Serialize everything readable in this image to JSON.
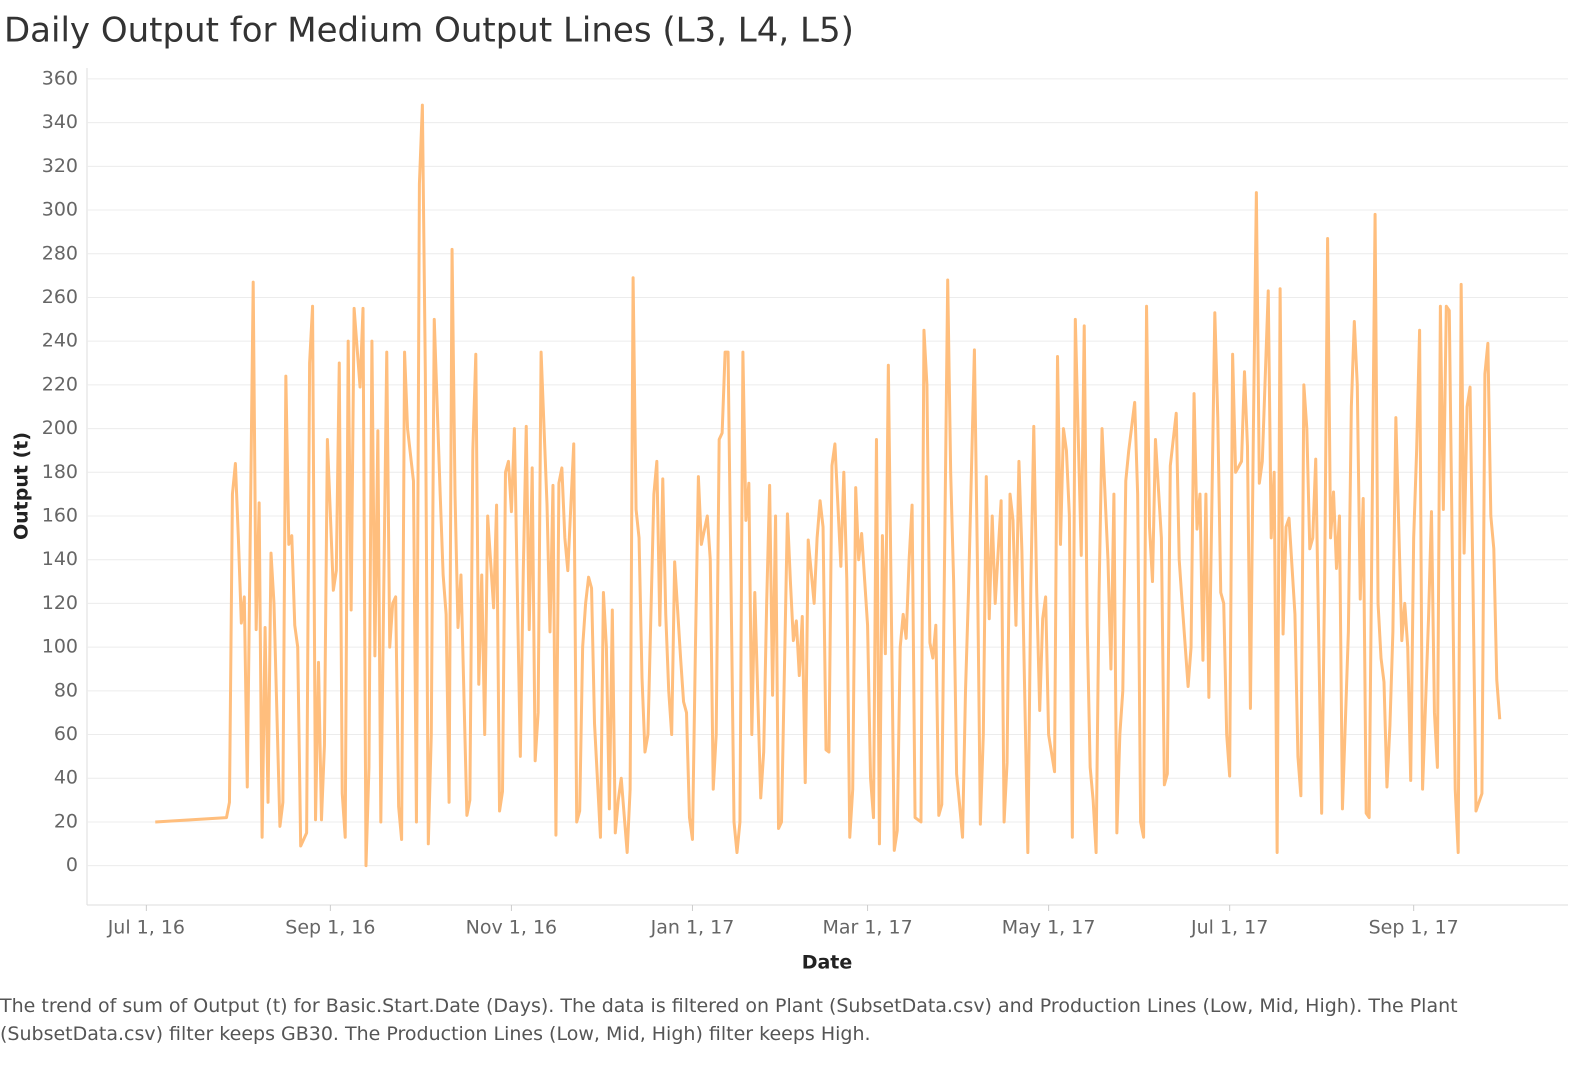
{
  "chart_data": {
    "type": "line",
    "title": "Daily Output for Medium Output Lines (L3, L4, L5)",
    "x_label": "Date",
    "y_label": "Output (t)",
    "caption": "The trend of sum of Output (t) for Basic.Start.Date (Days). The data is filtered on Plant (SubsetData.csv) and Production Lines (Low, Mid, High). The Plant (SubsetData.csv) filter keeps GB30. The Production Lines (Low, Mid, High) filter keeps High.",
    "color": "#ffbe7d",
    "grid": true,
    "xlim": [
      "2016-06-11",
      "2017-10-23"
    ],
    "xticks": [
      {
        "value": "2016-07-01",
        "label": "Jul 1, 16"
      },
      {
        "value": "2016-09-01",
        "label": "Sep 1, 16"
      },
      {
        "value": "2016-11-01",
        "label": "Nov 1, 16"
      },
      {
        "value": "2017-01-01",
        "label": "Jan 1, 17"
      },
      {
        "value": "2017-03-01",
        "label": "Mar 1, 17"
      },
      {
        "value": "2017-05-01",
        "label": "May 1, 17"
      },
      {
        "value": "2017-07-01",
        "label": "Jul 1, 17"
      },
      {
        "value": "2017-09-01",
        "label": "Sep 1, 17"
      }
    ],
    "ylim": [
      -18,
      365
    ],
    "yticks": [
      0,
      20,
      40,
      60,
      80,
      100,
      120,
      140,
      160,
      180,
      200,
      220,
      240,
      260,
      280,
      300,
      320,
      340,
      360
    ],
    "x": [
      "2016-07-04",
      "2016-07-28",
      "2016-07-29",
      "2016-07-30",
      "2016-07-31",
      "2016-08-01",
      "2016-08-02",
      "2016-08-03",
      "2016-08-04",
      "2016-08-06",
      "2016-08-07",
      "2016-08-08",
      "2016-08-09",
      "2016-08-10",
      "2016-08-11",
      "2016-08-12",
      "2016-08-13",
      "2016-08-15",
      "2016-08-16",
      "2016-08-17",
      "2016-08-18",
      "2016-08-19",
      "2016-08-20",
      "2016-08-21",
      "2016-08-22",
      "2016-08-24",
      "2016-08-25",
      "2016-08-26",
      "2016-08-27",
      "2016-08-28",
      "2016-08-29",
      "2016-08-30",
      "2016-08-31",
      "2016-09-02",
      "2016-09-03",
      "2016-09-04",
      "2016-09-05",
      "2016-09-06",
      "2016-09-07",
      "2016-09-08",
      "2016-09-09",
      "2016-09-11",
      "2016-09-12",
      "2016-09-13",
      "2016-09-14",
      "2016-09-15",
      "2016-09-16",
      "2016-09-17",
      "2016-09-18",
      "2016-09-20",
      "2016-09-21",
      "2016-09-22",
      "2016-09-23",
      "2016-09-24",
      "2016-09-25",
      "2016-09-26",
      "2016-09-27",
      "2016-09-29",
      "2016-09-30",
      "2016-10-01",
      "2016-10-02",
      "2016-10-03",
      "2016-10-04",
      "2016-10-05",
      "2016-10-06",
      "2016-10-08",
      "2016-10-09",
      "2016-10-10",
      "2016-10-11",
      "2016-10-12",
      "2016-10-13",
      "2016-10-14",
      "2016-10-15",
      "2016-10-17",
      "2016-10-18",
      "2016-10-19",
      "2016-10-20",
      "2016-10-21",
      "2016-10-22",
      "2016-10-23",
      "2016-10-24",
      "2016-10-26",
      "2016-10-27",
      "2016-10-28",
      "2016-10-29",
      "2016-10-30",
      "2016-10-31",
      "2016-11-01",
      "2016-11-02",
      "2016-11-04",
      "2016-11-05",
      "2016-11-06",
      "2016-11-07",
      "2016-11-08",
      "2016-11-09",
      "2016-11-10",
      "2016-11-11",
      "2016-11-13",
      "2016-11-14",
      "2016-11-15",
      "2016-11-16",
      "2016-11-17",
      "2016-11-18",
      "2016-11-19",
      "2016-11-20",
      "2016-11-22",
      "2016-11-23",
      "2016-11-24",
      "2016-11-25",
      "2016-11-26",
      "2016-11-27",
      "2016-11-28",
      "2016-11-29",
      "2016-12-01",
      "2016-12-02",
      "2016-12-03",
      "2016-12-04",
      "2016-12-05",
      "2016-12-06",
      "2016-12-07",
      "2016-12-08",
      "2016-12-10",
      "2016-12-11",
      "2016-12-12",
      "2016-12-13",
      "2016-12-14",
      "2016-12-15",
      "2016-12-16",
      "2016-12-17",
      "2016-12-19",
      "2016-12-20",
      "2016-12-21",
      "2016-12-22",
      "2016-12-23",
      "2016-12-24",
      "2016-12-25",
      "2016-12-26",
      "2016-12-28",
      "2016-12-29",
      "2016-12-30",
      "2016-12-31",
      "2017-01-01",
      "2017-01-02",
      "2017-01-03",
      "2017-01-04",
      "2017-01-06",
      "2017-01-07",
      "2017-01-08",
      "2017-01-09",
      "2017-01-10",
      "2017-01-11",
      "2017-01-12",
      "2017-01-13",
      "2017-01-15",
      "2017-01-16",
      "2017-01-17",
      "2017-01-18",
      "2017-01-19",
      "2017-01-20",
      "2017-01-21",
      "2017-01-22",
      "2017-01-24",
      "2017-01-25",
      "2017-01-26",
      "2017-01-27",
      "2017-01-28",
      "2017-01-29",
      "2017-01-30",
      "2017-01-31",
      "2017-02-02",
      "2017-02-03",
      "2017-02-04",
      "2017-02-05",
      "2017-02-06",
      "2017-02-07",
      "2017-02-08",
      "2017-02-09",
      "2017-02-11",
      "2017-02-12",
      "2017-02-13",
      "2017-02-14",
      "2017-02-15",
      "2017-02-16",
      "2017-02-17",
      "2017-02-18",
      "2017-02-20",
      "2017-02-21",
      "2017-02-22",
      "2017-02-23",
      "2017-02-24",
      "2017-02-25",
      "2017-02-26",
      "2017-02-27",
      "2017-03-01",
      "2017-03-02",
      "2017-03-03",
      "2017-03-04",
      "2017-03-05",
      "2017-03-06",
      "2017-03-07",
      "2017-03-08",
      "2017-03-10",
      "2017-03-11",
      "2017-03-12",
      "2017-03-13",
      "2017-03-14",
      "2017-03-15",
      "2017-03-16",
      "2017-03-17",
      "2017-03-19",
      "2017-03-20",
      "2017-03-21",
      "2017-03-22",
      "2017-03-23",
      "2017-03-24",
      "2017-03-25",
      "2017-03-26",
      "2017-03-28",
      "2017-03-29",
      "2017-03-30",
      "2017-03-31",
      "2017-04-01",
      "2017-04-02",
      "2017-04-03",
      "2017-04-04",
      "2017-04-06",
      "2017-04-07",
      "2017-04-08",
      "2017-04-09",
      "2017-04-10",
      "2017-04-11",
      "2017-04-12",
      "2017-04-13",
      "2017-04-15",
      "2017-04-16",
      "2017-04-17",
      "2017-04-18",
      "2017-04-19",
      "2017-04-20",
      "2017-04-21",
      "2017-04-22",
      "2017-04-24",
      "2017-04-25",
      "2017-04-26",
      "2017-04-27",
      "2017-04-28",
      "2017-04-29",
      "2017-04-30",
      "2017-05-01",
      "2017-05-03",
      "2017-05-04",
      "2017-05-05",
      "2017-05-06",
      "2017-05-07",
      "2017-05-08",
      "2017-05-09",
      "2017-05-10",
      "2017-05-12",
      "2017-05-13",
      "2017-05-14",
      "2017-05-15",
      "2017-05-16",
      "2017-05-17",
      "2017-05-18",
      "2017-05-19",
      "2017-05-21",
      "2017-05-22",
      "2017-05-23",
      "2017-05-24",
      "2017-05-25",
      "2017-05-26",
      "2017-05-27",
      "2017-05-28",
      "2017-05-30",
      "2017-05-31",
      "2017-06-01",
      "2017-06-02",
      "2017-06-03",
      "2017-06-04",
      "2017-06-05",
      "2017-06-06",
      "2017-06-08",
      "2017-06-09",
      "2017-06-10",
      "2017-06-11",
      "2017-06-12",
      "2017-06-13",
      "2017-06-14",
      "2017-06-15",
      "2017-06-17",
      "2017-06-18",
      "2017-06-19",
      "2017-06-20",
      "2017-06-21",
      "2017-06-22",
      "2017-06-23",
      "2017-06-24",
      "2017-06-26",
      "2017-06-27",
      "2017-06-28",
      "2017-06-29",
      "2017-06-30",
      "2017-07-01",
      "2017-07-02",
      "2017-07-03",
      "2017-07-05",
      "2017-07-06",
      "2017-07-07",
      "2017-07-08",
      "2017-07-09",
      "2017-07-10",
      "2017-07-11",
      "2017-07-12",
      "2017-07-14",
      "2017-07-15",
      "2017-07-16",
      "2017-07-17",
      "2017-07-18",
      "2017-07-19",
      "2017-07-20",
      "2017-07-21",
      "2017-07-23",
      "2017-07-24",
      "2017-07-25",
      "2017-07-26",
      "2017-07-27",
      "2017-07-28",
      "2017-07-29",
      "2017-07-30",
      "2017-08-01",
      "2017-08-02",
      "2017-08-03",
      "2017-08-04",
      "2017-08-05",
      "2017-08-06",
      "2017-08-07",
      "2017-08-08",
      "2017-08-10",
      "2017-08-11",
      "2017-08-12",
      "2017-08-13",
      "2017-08-14",
      "2017-08-15",
      "2017-08-16",
      "2017-08-17",
      "2017-08-19",
      "2017-08-20",
      "2017-08-21",
      "2017-08-22",
      "2017-08-23",
      "2017-08-24",
      "2017-08-25",
      "2017-08-26",
      "2017-08-28",
      "2017-08-29",
      "2017-08-30",
      "2017-08-31",
      "2017-09-01",
      "2017-09-02",
      "2017-09-03",
      "2017-09-04",
      "2017-09-06",
      "2017-09-07",
      "2017-09-08",
      "2017-09-09",
      "2017-09-10",
      "2017-09-11",
      "2017-09-12",
      "2017-09-13",
      "2017-09-15",
      "2017-09-16",
      "2017-09-17",
      "2017-09-18",
      "2017-09-19",
      "2017-09-20",
      "2017-09-21",
      "2017-09-22",
      "2017-09-24",
      "2017-09-25",
      "2017-09-26",
      "2017-09-27",
      "2017-09-28",
      "2017-09-29",
      "2017-09-30"
    ],
    "values": [
      20,
      22,
      29,
      170,
      184,
      150,
      111,
      123,
      36,
      267,
      108,
      166,
      13,
      109,
      29,
      143,
      120,
      18,
      29,
      224,
      147,
      151,
      110,
      100,
      9,
      15,
      230,
      256,
      21,
      93,
      21,
      55,
      195,
      126,
      135,
      230,
      33,
      13,
      240,
      117,
      255,
      219,
      255,
      0,
      45,
      240,
      96,
      199,
      20,
      235,
      100,
      120,
      123,
      27,
      12,
      235,
      200,
      176,
      20,
      312,
      348,
      225,
      10,
      60,
      250,
      170,
      133,
      115,
      29,
      282,
      170,
      109,
      133,
      23,
      30,
      190,
      234,
      83,
      133,
      60,
      160,
      118,
      165,
      25,
      34,
      180,
      185,
      162,
      200,
      50,
      135,
      201,
      108,
      182,
      48,
      70,
      235,
      165,
      107,
      174,
      14,
      175,
      182,
      150,
      135,
      193,
      20,
      25,
      100,
      120,
      132,
      127,
      65,
      13,
      125,
      100,
      26,
      117,
      15,
      30,
      40,
      6,
      35,
      269,
      163,
      150,
      86,
      52,
      60,
      170,
      185,
      110,
      177,
      115,
      80,
      60,
      139,
      95,
      75,
      70,
      22,
      12,
      100,
      178,
      147,
      160,
      140,
      35,
      60,
      195,
      198,
      235,
      235,
      20,
      6,
      20,
      235,
      158,
      175,
      60,
      125,
      31,
      52,
      120,
      174,
      78,
      160,
      17,
      20,
      161,
      130,
      103,
      112,
      87,
      114,
      38,
      149,
      120,
      150,
      167,
      155,
      53,
      52,
      183,
      193,
      137,
      180,
      131,
      13,
      35,
      173,
      140,
      152,
      110,
      40,
      22,
      195,
      10,
      151,
      97,
      229,
      7,
      16,
      100,
      115,
      104,
      140,
      165,
      22,
      20,
      245,
      220,
      102,
      95,
      110,
      23,
      28,
      268,
      180,
      130,
      42,
      28,
      13,
      80,
      125,
      236,
      140,
      19,
      60,
      178,
      113,
      160,
      120,
      167,
      20,
      47,
      170,
      158,
      110,
      185,
      144,
      6,
      127,
      201,
      125,
      71,
      113,
      123,
      60,
      43,
      233,
      147,
      200,
      190,
      160,
      13,
      250,
      142,
      247,
      110,
      45,
      30,
      6,
      125,
      200,
      140,
      90,
      170,
      15,
      60,
      80,
      176,
      190,
      212,
      170,
      20,
      13,
      256,
      155,
      130,
      195,
      150,
      37,
      42,
      183,
      195,
      207,
      140,
      120,
      82,
      100,
      216,
      154,
      170,
      94,
      170,
      77,
      253,
      205,
      125,
      120,
      60,
      41,
      234,
      180,
      185,
      226,
      192,
      72,
      200,
      308,
      175,
      185,
      263,
      150,
      180,
      6,
      264,
      106,
      155,
      159,
      115,
      50,
      32,
      220,
      200,
      145,
      150,
      186,
      24,
      130,
      287,
      150,
      171,
      136,
      160,
      26,
      107,
      210,
      249,
      220,
      122,
      168,
      24,
      22,
      298,
      120,
      95,
      84,
      36,
      64,
      107,
      205,
      103,
      120,
      100,
      39,
      150,
      190,
      245,
      35,
      113,
      162,
      70,
      45,
      256,
      163,
      256,
      254,
      35,
      6,
      266,
      143,
      210,
      219,
      127,
      25,
      33,
      225,
      239,
      160,
      145,
      85,
      67
    ]
  }
}
